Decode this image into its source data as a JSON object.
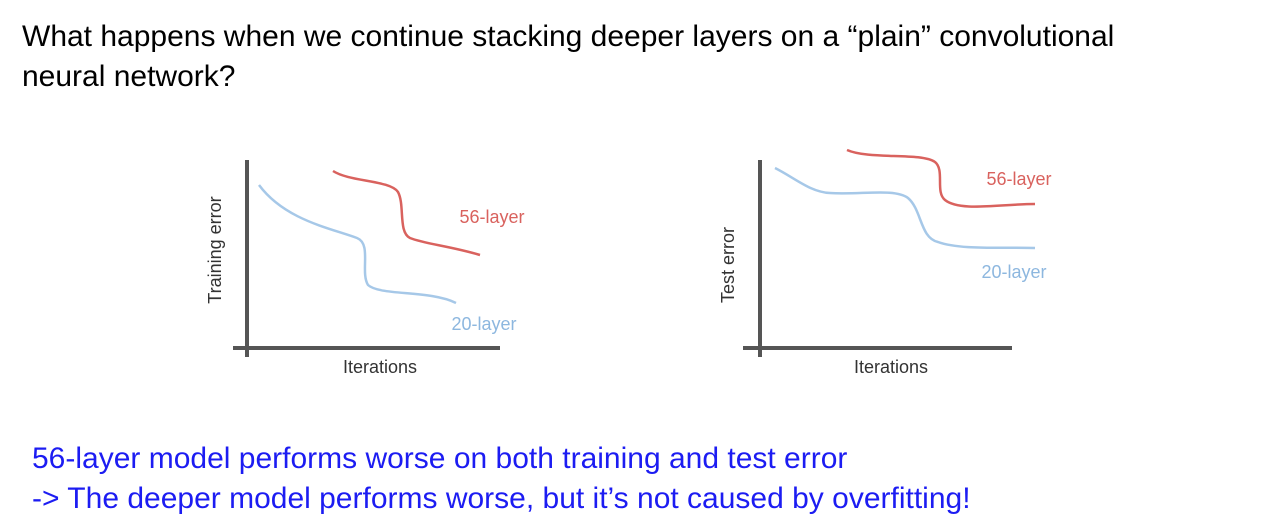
{
  "title": [
    "What happens when we continue stacking deeper layers on a “plain” convolutional",
    "neural network?"
  ],
  "plots": [
    {
      "y_label": "Training error",
      "x_label": "Iterations",
      "deep_label": "56-layer",
      "shallow_label": "20-layer"
    },
    {
      "y_label": "Test error",
      "x_label": "Iterations",
      "deep_label": "56-layer",
      "shallow_label": "20-layer"
    }
  ],
  "conclusion": [
    "56-layer model performs worse on both training and test error",
    "-> The deeper model performs worse, but it’s not caused by overfitting!"
  ]
}
